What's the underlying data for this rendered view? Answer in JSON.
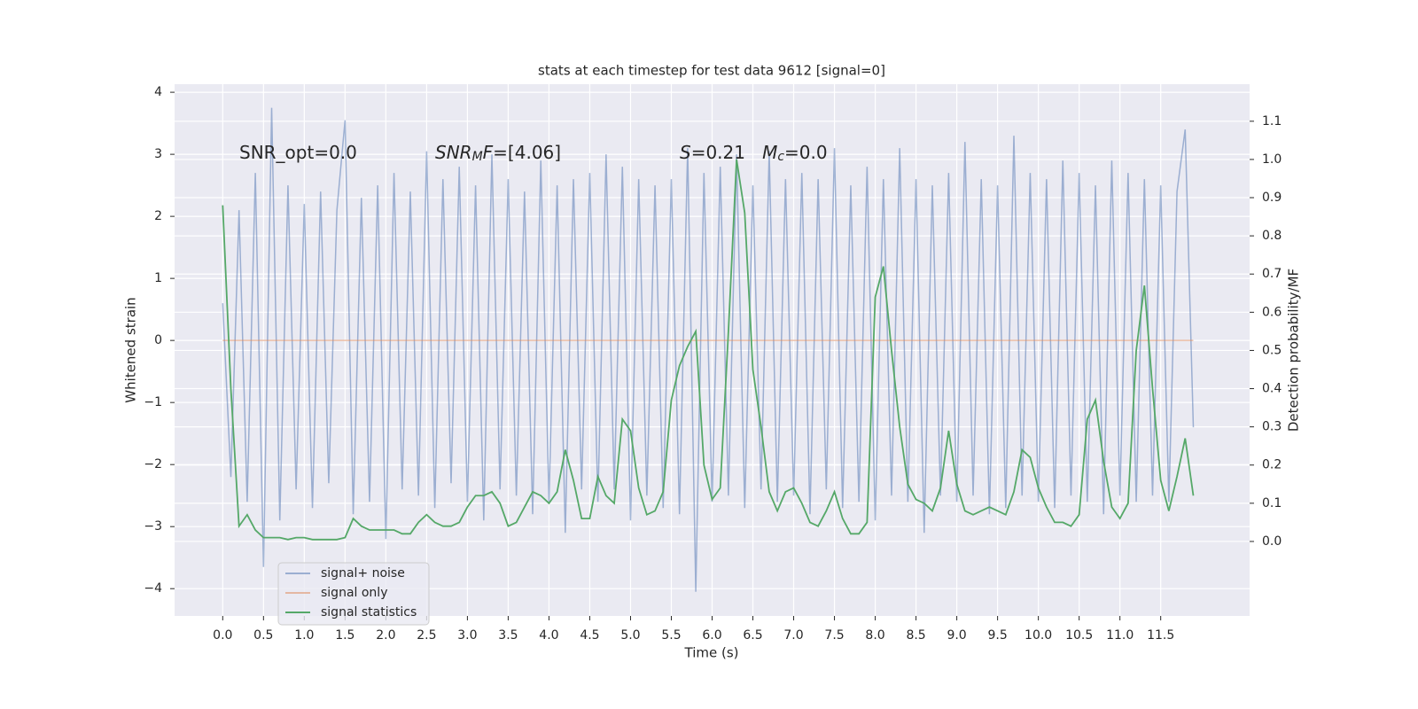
{
  "chart_data": {
    "type": "line",
    "title": "stats at each timestep for test data 9612 [signal=0]",
    "x_label": "Time (s)",
    "y_label": "Whitened strain",
    "y2_label": "Detection probability/MF",
    "annotations": [
      {
        "parts": [
          {
            "text": "SNR_opt=0.0"
          }
        ]
      },
      {
        "parts": [
          {
            "text": "SNR",
            "style": "italic"
          },
          {
            "text": "M",
            "style": "italic-sub"
          },
          {
            "text": "F",
            "style": "italic"
          },
          {
            "text": "=[4.06]"
          }
        ]
      },
      {
        "parts": [
          {
            "text": "S",
            "style": "italic"
          },
          {
            "text": "=0.21   "
          },
          {
            "text": "M",
            "style": "italic"
          },
          {
            "text": "c",
            "style": "italic-sub"
          },
          {
            "text": "=0.0"
          }
        ]
      }
    ],
    "x": [
      0,
      0.1,
      0.2,
      0.3,
      0.4,
      0.5,
      0.6,
      0.7,
      0.8,
      0.9,
      1,
      1.1,
      1.2,
      1.3,
      1.4,
      1.5,
      1.6,
      1.7,
      1.8,
      1.9,
      2,
      2.1,
      2.2,
      2.3,
      2.4,
      2.5,
      2.6,
      2.7,
      2.8,
      2.9,
      3,
      3.1,
      3.2,
      3.3,
      3.4,
      3.5,
      3.6,
      3.7,
      3.8,
      3.9,
      4,
      4.1,
      4.2,
      4.3,
      4.4,
      4.5,
      4.6,
      4.7,
      4.8,
      4.9,
      5,
      5.1,
      5.2,
      5.3,
      5.4,
      5.5,
      5.6,
      5.7,
      5.8,
      5.9,
      6,
      6.1,
      6.2,
      6.3,
      6.4,
      6.5,
      6.6,
      6.7,
      6.8,
      6.9,
      7,
      7.1,
      7.2,
      7.3,
      7.4,
      7.5,
      7.6,
      7.7,
      7.8,
      7.9,
      8,
      8.1,
      8.2,
      8.3,
      8.4,
      8.5,
      8.6,
      8.7,
      8.8,
      8.9,
      9,
      9.1,
      9.2,
      9.3,
      9.4,
      9.5,
      9.6,
      9.7,
      9.8,
      9.9,
      10,
      10.1,
      10.2,
      10.3,
      10.4,
      10.5,
      10.6,
      10.7,
      10.8,
      10.9,
      11,
      11.1,
      11.2,
      11.3,
      11.4,
      11.5,
      11.6,
      11.7,
      11.8,
      11.9
    ],
    "series": [
      {
        "name": "signal+ noise",
        "color": "#4c72b0",
        "opacity": 0.5,
        "axis": "y",
        "values": [
          0.6,
          -2.2,
          2.1,
          -2.6,
          2.7,
          -3.65,
          3.75,
          -2.9,
          2.5,
          -2.4,
          2.2,
          -2.7,
          2.4,
          -2.3,
          2.1,
          3.55,
          -2.8,
          2.3,
          -2.6,
          2.5,
          -3.2,
          2.7,
          -2.4,
          2.4,
          -2.5,
          3.05,
          -2.7,
          2.6,
          -2.3,
          2.8,
          -2.6,
          2.5,
          -2.9,
          3.0,
          -2.4,
          2.6,
          -2.5,
          2.4,
          -2.8,
          2.9,
          -2.6,
          2.5,
          -3.1,
          2.6,
          -2.4,
          2.7,
          -2.6,
          3.0,
          -2.4,
          2.8,
          -2.9,
          2.6,
          -2.5,
          2.5,
          -2.7,
          2.6,
          -2.8,
          3.1,
          -4.05,
          2.7,
          -2.6,
          2.8,
          -2.5,
          3.0,
          -2.7,
          2.5,
          -2.4,
          3.05,
          -2.6,
          2.6,
          -2.5,
          2.7,
          -2.8,
          2.6,
          -2.4,
          3.1,
          -2.7,
          2.5,
          -2.6,
          2.8,
          -2.9,
          2.6,
          -2.5,
          3.1,
          -2.6,
          2.6,
          -3.1,
          2.5,
          -2.5,
          2.7,
          -2.6,
          3.2,
          -2.5,
          2.6,
          -2.8,
          2.5,
          -2.7,
          3.3,
          -2.5,
          2.7,
          -2.6,
          2.6,
          -2.7,
          2.9,
          -2.5,
          2.7,
          -2.6,
          2.5,
          -2.8,
          2.9,
          -2.5,
          2.7,
          -2.6,
          2.6,
          -2.5,
          2.5,
          -2.6,
          2.4,
          3.4,
          -1.4
        ]
      },
      {
        "name": "signal only",
        "color": "#dd8452",
        "opacity": 0.5,
        "axis": "y",
        "values": [
          0,
          0,
          0,
          0,
          0,
          0,
          0,
          0,
          0,
          0,
          0,
          0,
          0,
          0,
          0,
          0,
          0,
          0,
          0,
          0,
          0,
          0,
          0,
          0,
          0,
          0,
          0,
          0,
          0,
          0,
          0,
          0,
          0,
          0,
          0,
          0,
          0,
          0,
          0,
          0,
          0,
          0,
          0,
          0,
          0,
          0,
          0,
          0,
          0,
          0,
          0,
          0,
          0,
          0,
          0,
          0,
          0,
          0,
          0,
          0,
          0,
          0,
          0,
          0,
          0,
          0,
          0,
          0,
          0,
          0,
          0,
          0,
          0,
          0,
          0,
          0,
          0,
          0,
          0,
          0,
          0,
          0,
          0,
          0,
          0,
          0,
          0,
          0,
          0,
          0,
          0,
          0,
          0,
          0,
          0,
          0,
          0,
          0,
          0,
          0,
          0,
          0,
          0,
          0,
          0,
          0,
          0,
          0,
          0,
          0,
          0,
          0,
          0,
          0,
          0,
          0,
          0,
          0,
          0,
          0
        ]
      },
      {
        "name": "signal statistics",
        "color": "#55a868",
        "opacity": 1,
        "axis": "y2",
        "values": [
          0.88,
          0.4,
          0.04,
          0.07,
          0.03,
          0.01,
          0.01,
          0.01,
          0.005,
          0.01,
          0.01,
          0.005,
          0.005,
          0.005,
          0.005,
          0.01,
          0.06,
          0.04,
          0.03,
          0.03,
          0.03,
          0.03,
          0.02,
          0.02,
          0.05,
          0.07,
          0.05,
          0.04,
          0.04,
          0.05,
          0.09,
          0.12,
          0.12,
          0.13,
          0.1,
          0.04,
          0.05,
          0.09,
          0.13,
          0.12,
          0.1,
          0.13,
          0.24,
          0.16,
          0.06,
          0.06,
          0.17,
          0.12,
          0.1,
          0.32,
          0.29,
          0.14,
          0.07,
          0.08,
          0.13,
          0.37,
          0.46,
          0.51,
          0.55,
          0.2,
          0.11,
          0.14,
          0.55,
          1.0,
          0.86,
          0.45,
          0.3,
          0.13,
          0.08,
          0.13,
          0.14,
          0.1,
          0.05,
          0.04,
          0.08,
          0.13,
          0.06,
          0.02,
          0.02,
          0.05,
          0.64,
          0.72,
          0.5,
          0.3,
          0.15,
          0.11,
          0.1,
          0.08,
          0.14,
          0.29,
          0.15,
          0.08,
          0.07,
          0.08,
          0.09,
          0.08,
          0.07,
          0.13,
          0.24,
          0.22,
          0.14,
          0.09,
          0.05,
          0.05,
          0.04,
          0.07,
          0.32,
          0.37,
          0.21,
          0.09,
          0.06,
          0.1,
          0.5,
          0.67,
          0.4,
          0.16,
          0.08,
          0.17,
          0.27,
          0.12
        ]
      }
    ],
    "xlim": [
      -0.59,
      12.59
    ],
    "xticks": [
      {
        "value": 0,
        "label": "0.0"
      },
      0.5,
      {
        "value": 1,
        "label": "1.0"
      },
      1.5,
      {
        "value": 2,
        "label": "2.0"
      },
      2.5,
      {
        "value": 3,
        "label": "3.0"
      },
      3.5,
      {
        "value": 4,
        "label": "4.0"
      },
      4.5,
      {
        "value": 5,
        "label": "5.0"
      },
      5.5,
      {
        "value": 6,
        "label": "6.0"
      },
      6.5,
      {
        "value": 7,
        "label": "7.0"
      },
      7.5,
      {
        "value": 8,
        "label": "8.0"
      },
      8.5,
      {
        "value": 9,
        "label": "9.0"
      },
      9.5,
      {
        "value": 10,
        "label": "10.0"
      },
      10.5,
      {
        "value": 11,
        "label": "11.0"
      },
      11.5
    ],
    "ylim": [
      -4.44,
      4.13
    ],
    "yticks": [
      {
        "value": -4,
        "label": "−4"
      },
      {
        "value": -3,
        "label": "−3"
      },
      {
        "value": -2,
        "label": "−2"
      },
      {
        "value": -1,
        "label": "−1"
      },
      0,
      1,
      2,
      3,
      4
    ],
    "y2lim": [
      -0.195,
      1.197
    ],
    "y2ticks": [
      {
        "value": 0,
        "label": "0.0"
      },
      0.1,
      0.2,
      0.3,
      0.4,
      0.5,
      0.6,
      0.7,
      0.8,
      0.9,
      {
        "value": 1,
        "label": "1.0"
      },
      1.1
    ],
    "grid": true,
    "legend": "lower left"
  }
}
